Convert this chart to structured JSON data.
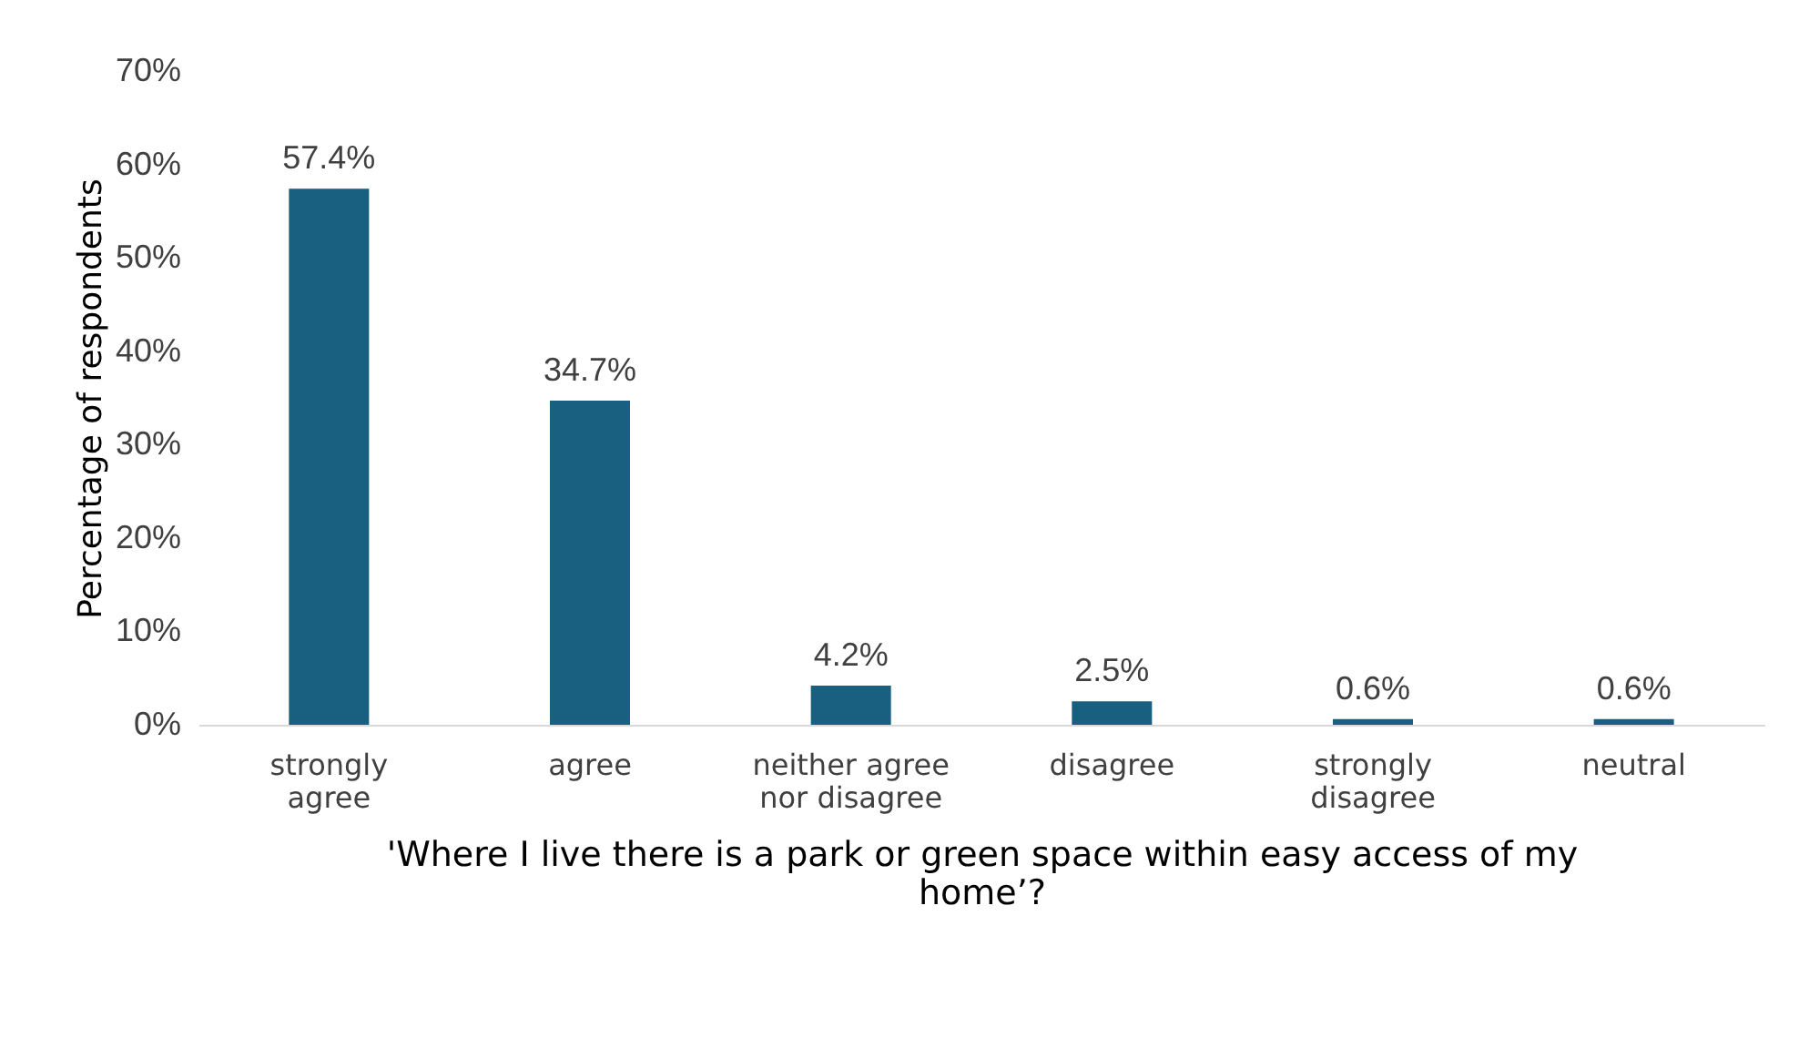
{
  "chart_data": {
    "type": "bar",
    "xlabel": "'Where I live there is a park or green space within easy access of my home’?",
    "ylabel": "Percentage of respondents",
    "categories": [
      "strongly agree",
      "agree",
      "neither agree nor disagree",
      "disagree",
      "strongly disagree",
      "neutral"
    ],
    "values": [
      57.4,
      34.7,
      4.2,
      2.5,
      0.6,
      0.6
    ],
    "value_labels": [
      "57.4%",
      "34.7%",
      "4.2%",
      "2.5%",
      "0.6%",
      "0.6%"
    ],
    "color": "#195f80",
    "ylim": [
      0,
      70
    ],
    "yticks": [
      {
        "value": 0,
        "label": "0%"
      },
      {
        "value": 10,
        "label": "10%"
      },
      {
        "value": 20,
        "label": "20%"
      },
      {
        "value": 30,
        "label": "30%"
      },
      {
        "value": 40,
        "label": "40%"
      },
      {
        "value": 50,
        "label": "50%"
      },
      {
        "value": 60,
        "label": "60%"
      },
      {
        "value": 70,
        "label": "70%"
      }
    ],
    "grid": false
  }
}
